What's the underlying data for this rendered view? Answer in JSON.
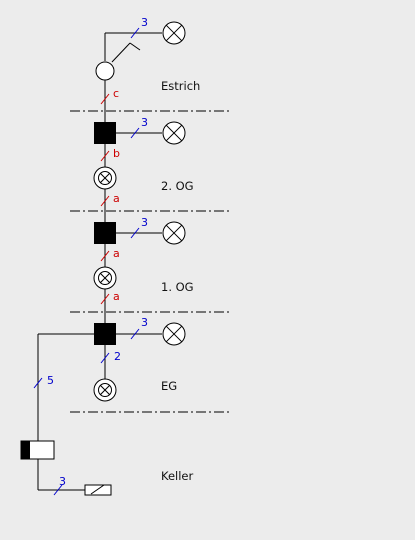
{
  "floors": {
    "attic": "Estrich",
    "second": "2. OG",
    "first": "1. OG",
    "ground": "EG",
    "basement": "Keller"
  },
  "wire_counts": {
    "attic_lamp": "3",
    "attic_riser": "c",
    "second_lamp": "3",
    "second_riser": "b",
    "second_to_first": "a",
    "first_lamp": "3",
    "first_riser": "a",
    "first_to_ground": "a",
    "ground_lamp": "3",
    "ground_down": "2",
    "feed": "5",
    "basement": "3"
  },
  "colors": {
    "background": "#ececec",
    "line": "#000000",
    "blue_label": "#0000cc",
    "red_label": "#cc0000"
  }
}
